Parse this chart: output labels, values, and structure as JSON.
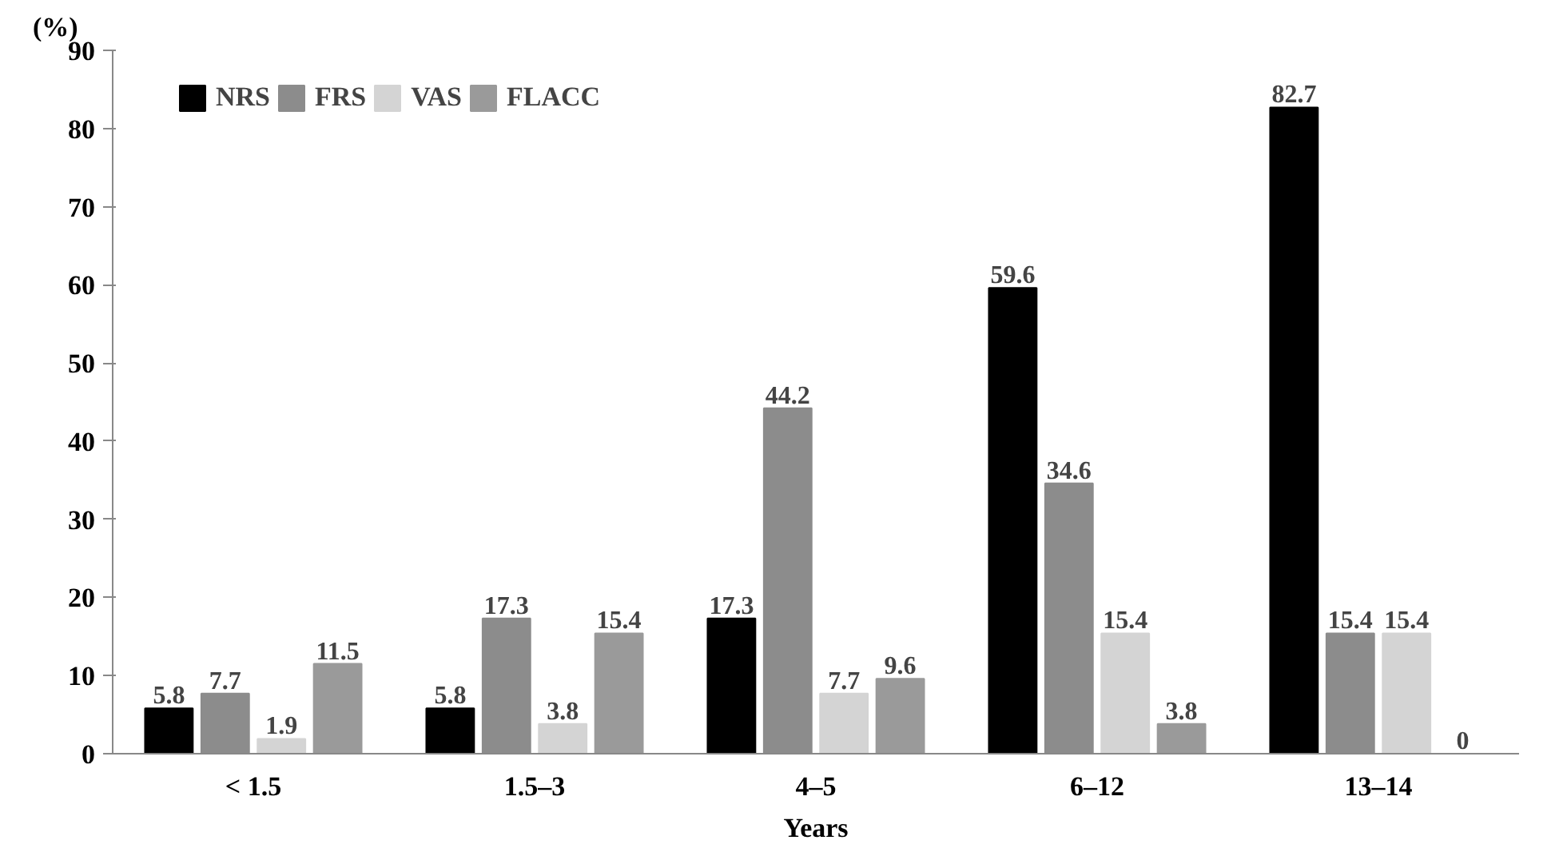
{
  "chart_data": {
    "type": "bar",
    "xlabel": "Years",
    "ylabel": "(%)",
    "categories": [
      "< 1.5",
      "1.5–3",
      "4–5",
      "6–12",
      "13–14"
    ],
    "series": [
      {
        "name": "NRS",
        "color": "#000000",
        "values": [
          5.8,
          5.8,
          17.3,
          59.6,
          82.7
        ]
      },
      {
        "name": "FRS",
        "color": "#8c8c8c",
        "values": [
          7.7,
          17.3,
          44.2,
          34.6,
          15.4
        ]
      },
      {
        "name": "VAS",
        "color": "#d4d4d4",
        "values": [
          1.9,
          3.8,
          7.7,
          15.4,
          15.4
        ]
      },
      {
        "name": "FLACC",
        "color": "#9a9a9a",
        "values": [
          11.5,
          15.4,
          9.6,
          3.8,
          0
        ]
      }
    ],
    "ylim": [
      0,
      90
    ],
    "yticks": [
      0,
      10,
      20,
      30,
      40,
      50,
      60,
      70,
      80,
      90
    ],
    "grid": false,
    "legend": "top left",
    "data_labels": true
  }
}
